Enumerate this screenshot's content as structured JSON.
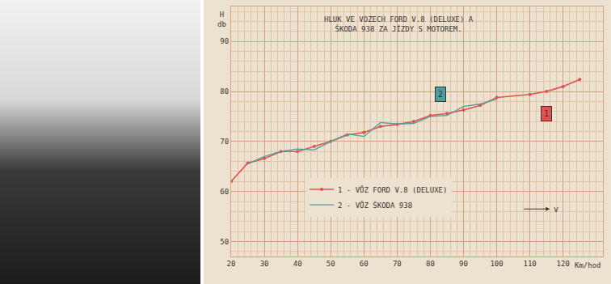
{
  "chart_data": {
    "type": "line",
    "title": "HLUK VE VOZECH FORD V.8 (DELUXE) A ŠKODA 938 ZA JÍZDY S MOTOREM.",
    "xlabel": "Km/hod",
    "ylabel": "H db",
    "x": [
      20,
      25,
      30,
      35,
      40,
      45,
      50,
      55,
      60,
      65,
      70,
      75,
      80,
      85,
      90,
      95,
      100,
      110,
      115,
      120,
      125
    ],
    "series": [
      {
        "name": "1 - VŮZ FORD V.8 (DELUXE)",
        "color": "#e0524f",
        "marker": "circle",
        "values": [
          62,
          65.7,
          66.6,
          68,
          68,
          69,
          70,
          71.3,
          71.8,
          73,
          73.4,
          74,
          75.2,
          75.6,
          76.3,
          77.2,
          78.8,
          79.4,
          80,
          81,
          82.4
        ]
      },
      {
        "name": "2 - VŮZ ŠKODA 938",
        "color": "#4a9e9c",
        "values": [
          null,
          65.5,
          67,
          68,
          68.5,
          68.3,
          70,
          71.5,
          71,
          73.8,
          73.5,
          73.6,
          75,
          75.2,
          77,
          77.5,
          78.5,
          null,
          null,
          null,
          null
        ]
      }
    ],
    "annotations": [
      {
        "text": "1",
        "x": 115,
        "y": 75.5,
        "color": "#e0524f"
      },
      {
        "text": "2",
        "x": 83,
        "y": 79.5,
        "color": "#4a9e9c"
      },
      {
        "text": "v",
        "x": 116,
        "y": 56.5,
        "marker": "arrow"
      }
    ],
    "xlim": [
      20,
      132
    ],
    "xticks": [
      20,
      30,
      40,
      50,
      60,
      70,
      80,
      90,
      100,
      110,
      120
    ],
    "ylim": [
      47,
      97
    ],
    "yticks": [
      50,
      60,
      70,
      80,
      90
    ],
    "grid": true,
    "legend": "lower left"
  }
}
